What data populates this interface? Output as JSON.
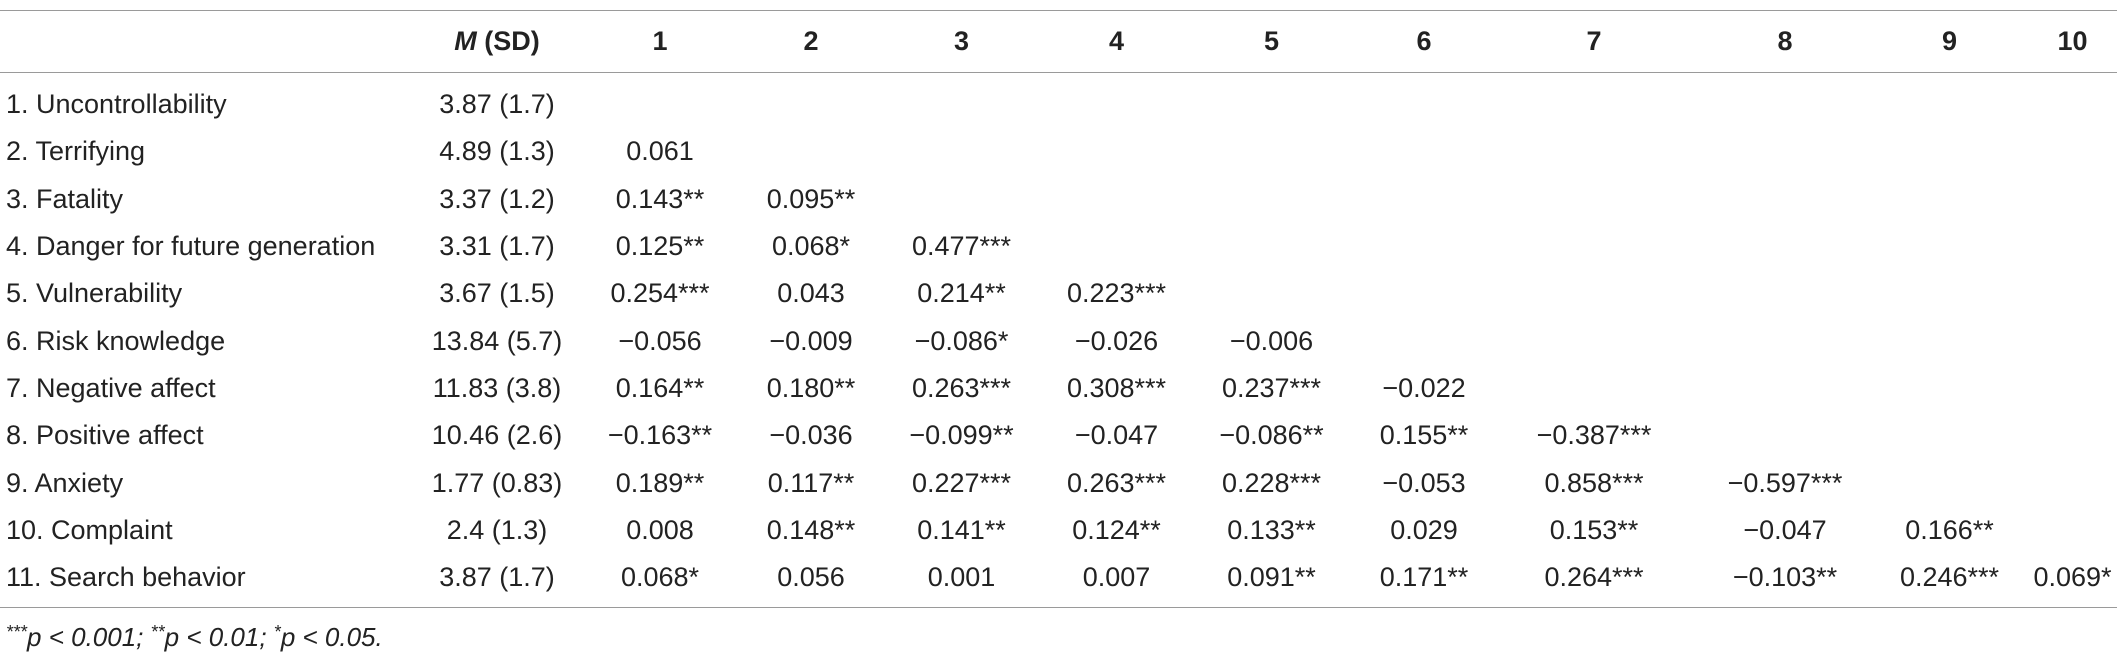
{
  "table": {
    "header": {
      "var_label": "",
      "msd_m": "M",
      "msd_rest": " (SD)",
      "cols": [
        "1",
        "2",
        "3",
        "4",
        "5",
        "6",
        "7",
        "8",
        "9",
        "10"
      ]
    },
    "rows": [
      {
        "label": "1. Uncontrollability",
        "msd": "3.87 (1.7)",
        "cells": [
          "",
          "",
          "",
          "",
          "",
          "",
          "",
          "",
          "",
          ""
        ]
      },
      {
        "label": "2. Terrifying",
        "msd": "4.89 (1.3)",
        "cells": [
          "0.061",
          "",
          "",
          "",
          "",
          "",
          "",
          "",
          "",
          ""
        ]
      },
      {
        "label": "3. Fatality",
        "msd": "3.37 (1.2)",
        "cells": [
          "0.143**",
          "0.095**",
          "",
          "",
          "",
          "",
          "",
          "",
          "",
          ""
        ]
      },
      {
        "label": "4. Danger for future generation",
        "msd": "3.31 (1.7)",
        "cells": [
          "0.125**",
          "0.068*",
          "0.477***",
          "",
          "",
          "",
          "",
          "",
          "",
          ""
        ]
      },
      {
        "label": "5. Vulnerability",
        "msd": "3.67 (1.5)",
        "cells": [
          "0.254***",
          "0.043",
          "0.214**",
          "0.223***",
          "",
          "",
          "",
          "",
          "",
          ""
        ]
      },
      {
        "label": "6. Risk knowledge",
        "msd": "13.84 (5.7)",
        "cells": [
          "−0.056",
          "−0.009",
          "−0.086*",
          "−0.026",
          "−0.006",
          "",
          "",
          "",
          "",
          ""
        ]
      },
      {
        "label": "7. Negative affect",
        "msd": "11.83 (3.8)",
        "cells": [
          "0.164**",
          "0.180**",
          "0.263***",
          "0.308***",
          "0.237***",
          "−0.022",
          "",
          "",
          "",
          ""
        ]
      },
      {
        "label": "8. Positive affect",
        "msd": "10.46 (2.6)",
        "cells": [
          "−0.163**",
          "−0.036",
          "−0.099**",
          "−0.047",
          "−0.086**",
          "0.155**",
          "−0.387***",
          "",
          "",
          ""
        ]
      },
      {
        "label": "9. Anxiety",
        "msd": "1.77 (0.83)",
        "cells": [
          "0.189**",
          "0.117**",
          "0.227***",
          "0.263***",
          "0.228***",
          "−0.053",
          "0.858***",
          "−0.597***",
          "",
          ""
        ]
      },
      {
        "label": "10. Complaint",
        "msd": "2.4 (1.3)",
        "cells": [
          "0.008",
          "0.148**",
          "0.141**",
          "0.124**",
          "0.133**",
          "0.029",
          "0.153**",
          "−0.047",
          "0.166**",
          ""
        ]
      },
      {
        "label": "11. Search behavior",
        "msd": "3.87 (1.7)",
        "cells": [
          "0.068*",
          "0.056",
          "0.001",
          "0.007",
          "0.091**",
          "0.171**",
          "0.264***",
          "−0.103**",
          "0.246***",
          "0.069*"
        ]
      }
    ]
  },
  "footnote": {
    "p1_stars": "***",
    "p1_text": "p < 0.001; ",
    "p2_stars": "**",
    "p2_text": "p < 0.01; ",
    "p3_stars": "*",
    "p3_text": "p < 0.05."
  }
}
